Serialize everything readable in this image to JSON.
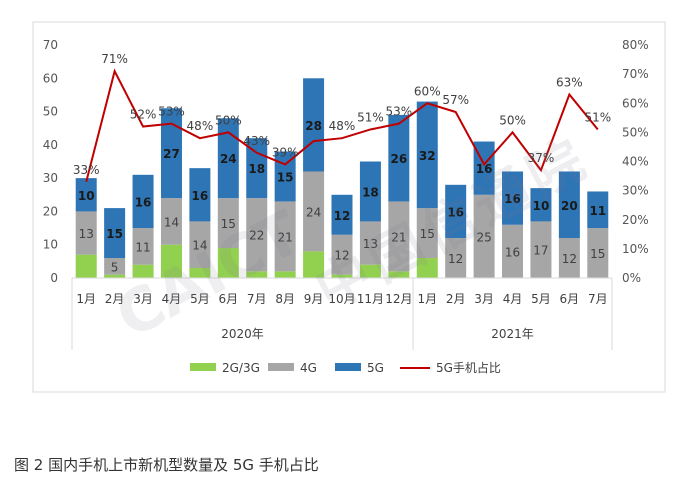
{
  "caption": "图 2 国内手机上市新机型数量及 5G 手机占比",
  "watermark_cn": "中国信通院",
  "watermark_en": "CAICT",
  "colors": {
    "c2g3g": "#92d050",
    "c4g": "#a6a6a6",
    "c5g": "#2e75b6",
    "share": "#c00000",
    "frame": "#d9d9d9"
  },
  "chart_data": {
    "type": "bar",
    "stacked": true,
    "title": "",
    "categories": [
      "1月",
      "2月",
      "3月",
      "4月",
      "5月",
      "6月",
      "7月",
      "8月",
      "9月",
      "10月",
      "11月",
      "12月",
      "1月",
      "2月",
      "3月",
      "4月",
      "5月",
      "6月",
      "7月"
    ],
    "year_groups": [
      {
        "label": "2020年",
        "count": 12
      },
      {
        "label": "2021年",
        "count": 7
      }
    ],
    "series": [
      {
        "name": "2G/3G",
        "color": "#92d050",
        "values": [
          7,
          1,
          4,
          10,
          3,
          9,
          2,
          2,
          8,
          1,
          4,
          2,
          6,
          0,
          0,
          0,
          0,
          0,
          0
        ]
      },
      {
        "name": "4G",
        "color": "#a6a6a6",
        "values": [
          13,
          5,
          11,
          14,
          14,
          15,
          22,
          21,
          24,
          12,
          13,
          21,
          15,
          12,
          25,
          16,
          17,
          12,
          15
        ]
      },
      {
        "name": "5G",
        "color": "#2e75b6",
        "values": [
          10,
          15,
          16,
          27,
          16,
          24,
          18,
          15,
          28,
          12,
          18,
          26,
          32,
          16,
          16,
          16,
          10,
          20,
          11
        ]
      }
    ],
    "line": {
      "name": "5G手机占比",
      "color": "#c00000",
      "values": [
        33,
        71,
        52,
        53,
        48,
        50,
        43,
        39,
        47,
        48,
        51,
        53,
        60,
        57,
        39,
        50,
        37,
        63,
        51
      ],
      "labels": [
        "33%",
        "71%",
        "52%",
        "53%",
        "48%",
        "50%",
        "43%",
        "39%",
        "",
        "48%",
        "51%",
        "53%",
        "60%",
        "57%",
        "",
        "50%",
        "37%",
        "63%",
        "51%"
      ]
    },
    "y_left": {
      "min": 0,
      "max": 70,
      "ticks": [
        "0",
        "10",
        "20",
        "30",
        "40",
        "50",
        "60",
        "70"
      ]
    },
    "y_right": {
      "min": 0,
      "max": 80,
      "ticks": [
        "0%",
        "10%",
        "20%",
        "30%",
        "40%",
        "50%",
        "60%",
        "70%",
        "80%"
      ]
    },
    "legend": {
      "position": "bottom",
      "items": [
        "2G/3G",
        "4G",
        "5G",
        "5G手机占比"
      ]
    },
    "grid": false
  }
}
